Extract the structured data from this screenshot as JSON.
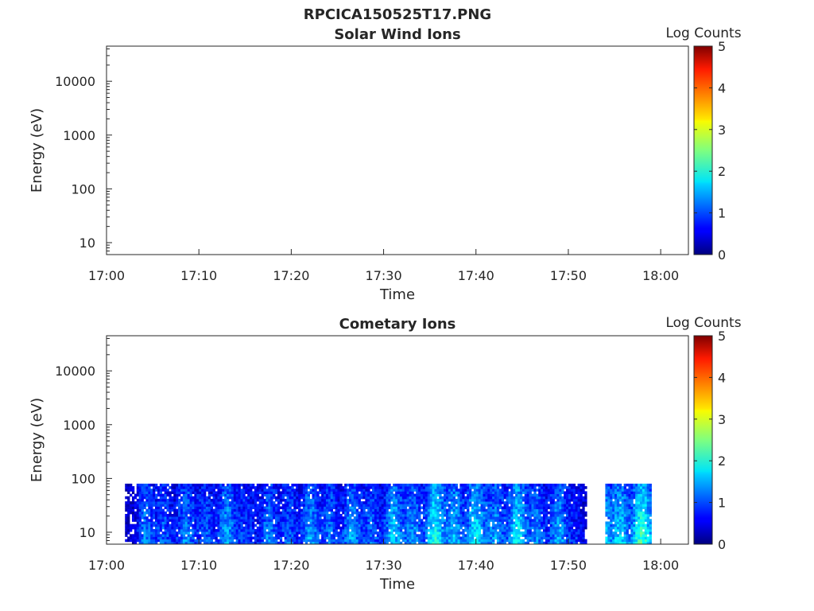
{
  "figure_title": "RPCICA150525T17.PNG",
  "chart_data": [
    {
      "type": "heatmap",
      "title": "Solar Wind Ions",
      "xlabel": "Time",
      "ylabel": "Energy (eV)",
      "x_ticks": [
        "17:00",
        "17:10",
        "17:20",
        "17:30",
        "17:40",
        "17:50",
        "18:00"
      ],
      "x_range": [
        "17:00",
        "18:03"
      ],
      "y_scale": "log",
      "y_ticks": [
        "10",
        "100",
        "1000",
        "10000"
      ],
      "y_range": [
        6,
        45000
      ],
      "colorbar": {
        "label": "Log Counts",
        "ticks": [
          "0",
          "1",
          "2",
          "3",
          "4",
          "5"
        ],
        "range": [
          0,
          5
        ],
        "colormap": "jet"
      },
      "data": "empty"
    },
    {
      "type": "heatmap",
      "title": "Cometary Ions",
      "xlabel": "Time",
      "ylabel": "Energy (eV)",
      "x_ticks": [
        "17:00",
        "17:10",
        "17:20",
        "17:30",
        "17:40",
        "17:50",
        "18:00"
      ],
      "x_range": [
        "17:00",
        "18:03"
      ],
      "y_scale": "log",
      "y_ticks": [
        "10",
        "100",
        "1000",
        "10000"
      ],
      "y_range": [
        6,
        45000
      ],
      "colorbar": {
        "label": "Log Counts",
        "ticks": [
          "0",
          "1",
          "2",
          "3",
          "4",
          "5"
        ],
        "range": [
          0,
          5
        ],
        "colormap": "jet"
      },
      "data": {
        "energy_range": [
          6,
          80
        ],
        "active_intervals": [
          [
            "17:02",
            "17:52"
          ],
          [
            "17:54",
            "17:59"
          ]
        ],
        "intensity_profile": [
          {
            "time": "17:02",
            "value": 0.3
          },
          {
            "time": "17:04",
            "value": 1.0
          },
          {
            "time": "17:06",
            "value": 1.2
          },
          {
            "time": "17:08",
            "value": 1.0
          },
          {
            "time": "17:10",
            "value": 1.1
          },
          {
            "time": "17:12",
            "value": 1.2
          },
          {
            "time": "17:14",
            "value": 1.1
          },
          {
            "time": "17:16",
            "value": 1.0
          },
          {
            "time": "17:18",
            "value": 1.0
          },
          {
            "time": "17:20",
            "value": 1.2
          },
          {
            "time": "17:22",
            "value": 1.1
          },
          {
            "time": "17:24",
            "value": 1.3
          },
          {
            "time": "17:26",
            "value": 1.1
          },
          {
            "time": "17:28",
            "value": 1.2
          },
          {
            "time": "17:30",
            "value": 1.2
          },
          {
            "time": "17:32",
            "value": 1.4
          },
          {
            "time": "17:34",
            "value": 1.5
          },
          {
            "time": "17:36",
            "value": 1.6
          },
          {
            "time": "17:38",
            "value": 1.7
          },
          {
            "time": "17:40",
            "value": 1.4
          },
          {
            "time": "17:42",
            "value": 1.5
          },
          {
            "time": "17:44",
            "value": 1.5
          },
          {
            "time": "17:46",
            "value": 1.4
          },
          {
            "time": "17:48",
            "value": 1.2
          },
          {
            "time": "17:50",
            "value": 1.1
          },
          {
            "time": "17:52",
            "value": 0.5
          },
          {
            "time": "17:54",
            "value": 1.6
          },
          {
            "time": "17:56",
            "value": 1.9
          },
          {
            "time": "17:58",
            "value": 1.7
          }
        ]
      }
    }
  ]
}
